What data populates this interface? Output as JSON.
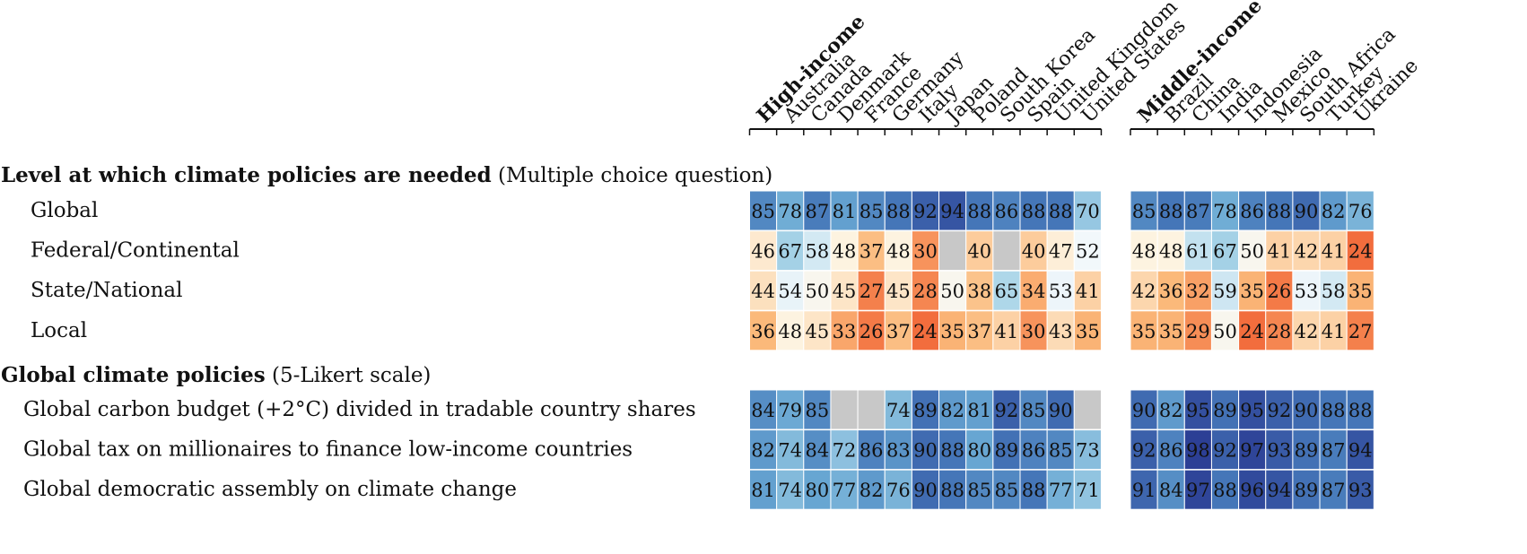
{
  "chart_data": {
    "type": "heatmap",
    "group_headers": [
      "High-income",
      "Middle-income"
    ],
    "countries_high": [
      "Australia",
      "Canada",
      "Denmark",
      "France",
      "Germany",
      "Italy",
      "Japan",
      "Poland",
      "South Korea",
      "Spain",
      "United Kingdom",
      "United States"
    ],
    "countries_mid": [
      "Brazil",
      "China",
      "India",
      "Indonesia",
      "Mexico",
      "South Africa",
      "Turkey",
      "Ukraine"
    ],
    "sections": [
      {
        "title_bold": "Level at which climate policies are needed",
        "title_note": "(Multiple choice question)",
        "rows": [
          {
            "label": "Global",
            "high_agg": 85,
            "high": [
              78,
              87,
              81,
              85,
              88,
              92,
              94,
              88,
              86,
              88,
              88,
              70
            ],
            "mid_agg": 85,
            "mid": [
              88,
              87,
              78,
              86,
              88,
              90,
              82,
              76
            ]
          },
          {
            "label": "Federal/Continental",
            "high_agg": 46,
            "high": [
              67,
              58,
              48,
              37,
              48,
              30,
              null,
              40,
              null,
              40,
              47,
              52
            ],
            "mid_agg": 48,
            "mid": [
              48,
              61,
              67,
              50,
              41,
              42,
              41,
              24
            ]
          },
          {
            "label": "State/National",
            "high_agg": 44,
            "high": [
              54,
              50,
              45,
              27,
              45,
              28,
              50,
              38,
              65,
              34,
              53,
              41
            ],
            "mid_agg": 42,
            "mid": [
              36,
              32,
              59,
              35,
              26,
              53,
              58,
              35
            ]
          },
          {
            "label": "Local",
            "high_agg": 36,
            "high": [
              48,
              45,
              33,
              26,
              37,
              24,
              35,
              37,
              41,
              30,
              43,
              35
            ],
            "mid_agg": 35,
            "mid": [
              35,
              29,
              50,
              24,
              28,
              42,
              41,
              27
            ]
          }
        ]
      },
      {
        "title_bold": "Global climate policies",
        "title_note": "(5-Likert scale)",
        "rows": [
          {
            "label": "Global carbon budget (+2°C) divided in tradable country shares",
            "high_agg": 84,
            "high": [
              79,
              85,
              null,
              null,
              74,
              89,
              82,
              81,
              92,
              85,
              90,
              null
            ],
            "mid_agg": 90,
            "mid": [
              82,
              95,
              89,
              95,
              92,
              90,
              88,
              88
            ]
          },
          {
            "label": "Global tax on millionaires to finance low-income countries",
            "high_agg": 82,
            "high": [
              74,
              84,
              72,
              86,
              83,
              90,
              88,
              80,
              89,
              86,
              85,
              73
            ],
            "mid_agg": 92,
            "mid": [
              86,
              98,
              92,
              97,
              93,
              89,
              87,
              94
            ]
          },
          {
            "label": "Global democratic assembly on climate change",
            "high_agg": 81,
            "high": [
              74,
              80,
              77,
              82,
              76,
              90,
              88,
              85,
              85,
              88,
              77,
              71
            ],
            "mid_agg": 91,
            "mid": [
              84,
              97,
              88,
              96,
              94,
              89,
              87,
              93
            ]
          }
        ]
      }
    ],
    "color_scale": {
      "low": "#f26d3d",
      "mid": "#ffffff",
      "high": "#2c3f95",
      "missing": "#c8c8c8"
    }
  }
}
